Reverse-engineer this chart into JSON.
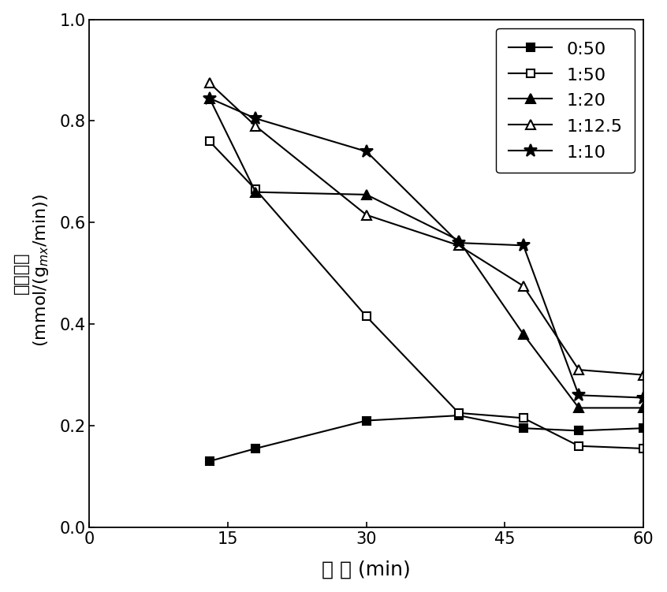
{
  "title": "",
  "xlabel": "时 间 (min)",
  "ylabel_chinese": "产氢速率",
  "ylabel_units": " (mmol/(g$_{mx}$/min))",
  "xlim": [
    0,
    60
  ],
  "ylim": [
    0.0,
    1.0
  ],
  "xticks": [
    0,
    15,
    30,
    45,
    60
  ],
  "yticks": [
    0.0,
    0.2,
    0.4,
    0.6,
    0.8,
    1.0
  ],
  "series": [
    {
      "label": "0:50",
      "x": [
        13,
        18,
        30,
        40,
        47,
        53,
        60
      ],
      "y": [
        0.13,
        0.155,
        0.21,
        0.22,
        0.195,
        0.19,
        0.195
      ],
      "marker": "s",
      "filled": true,
      "color": "#000000",
      "linewidth": 1.5,
      "markersize": 7
    },
    {
      "label": "1:50",
      "x": [
        13,
        18,
        30,
        40,
        47,
        53,
        60
      ],
      "y": [
        0.76,
        0.665,
        0.415,
        0.225,
        0.215,
        0.16,
        0.155
      ],
      "marker": "s",
      "filled": false,
      "color": "#000000",
      "linewidth": 1.5,
      "markersize": 7
    },
    {
      "label": "1:20",
      "x": [
        13,
        18,
        30,
        40,
        47,
        53,
        60
      ],
      "y": [
        0.845,
        0.66,
        0.655,
        0.565,
        0.38,
        0.235,
        0.235
      ],
      "marker": "^",
      "filled": true,
      "color": "#000000",
      "linewidth": 1.5,
      "markersize": 8
    },
    {
      "label": "1:12.5",
      "x": [
        13,
        18,
        30,
        40,
        47,
        53,
        60
      ],
      "y": [
        0.875,
        0.79,
        0.615,
        0.555,
        0.475,
        0.31,
        0.3
      ],
      "marker": "^",
      "filled": false,
      "color": "#000000",
      "linewidth": 1.5,
      "markersize": 8
    },
    {
      "label": "1:10",
      "x": [
        13,
        18,
        30,
        40,
        47,
        53,
        60
      ],
      "y": [
        0.845,
        0.805,
        0.74,
        0.56,
        0.555,
        0.26,
        0.255
      ],
      "marker": "*",
      "filled": true,
      "color": "#000000",
      "linewidth": 1.5,
      "markersize": 12
    }
  ],
  "legend_loc": "upper right",
  "background_color": "#ffffff",
  "font_size": 16,
  "tick_fontsize": 15,
  "label_fontsize": 18
}
